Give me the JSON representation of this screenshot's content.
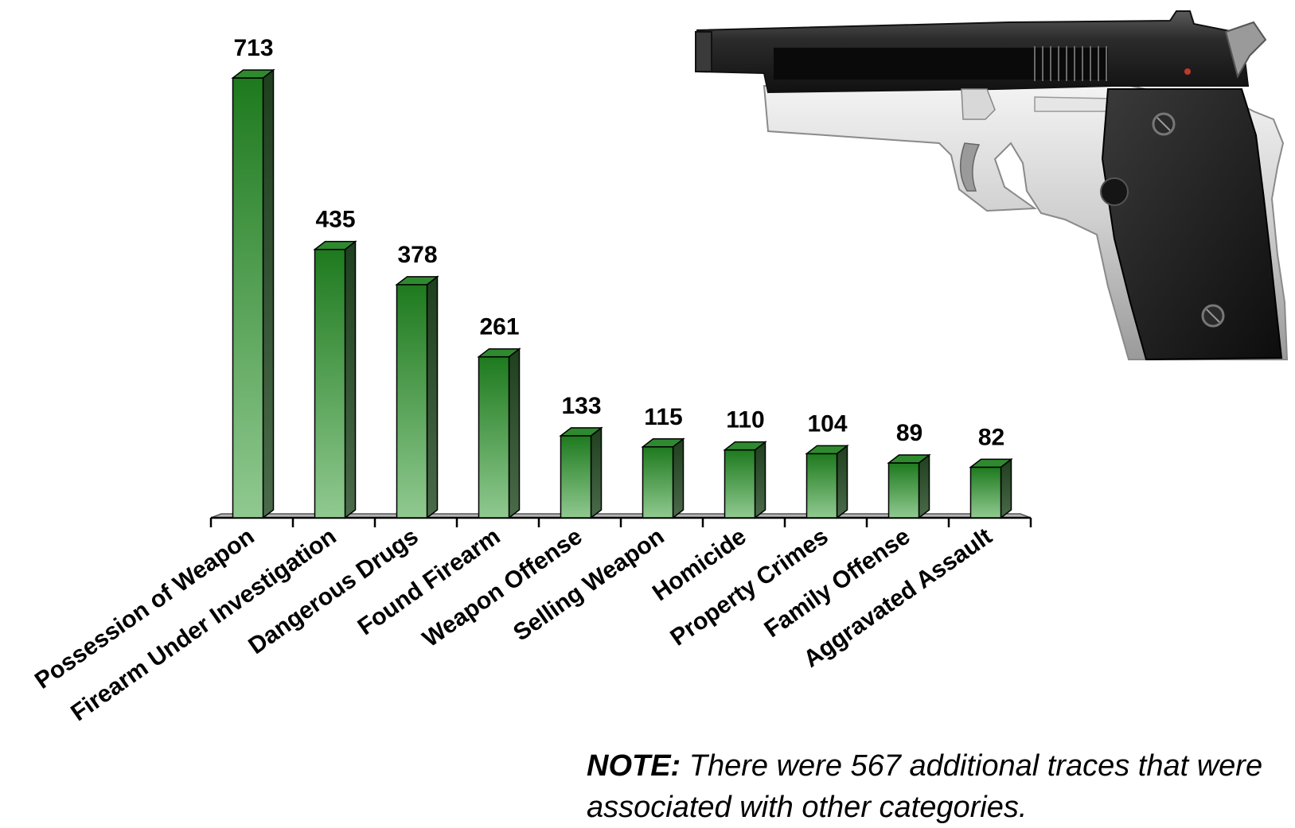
{
  "chart_data": {
    "type": "bar",
    "categories": [
      "Possession of Weapon",
      "Firearm Under Investigation",
      "Dangerous Drugs",
      "Found Firearm",
      "Weapon Offense",
      "Selling Weapon",
      "Homicide",
      "Property Crimes",
      "Family Offense",
      "Aggravated Assault"
    ],
    "values": [
      713,
      435,
      378,
      261,
      133,
      115,
      110,
      104,
      89,
      82
    ],
    "data_labels": [
      "713",
      "435",
      "378",
      "261",
      "133",
      "115",
      "110",
      "104",
      "89",
      "82"
    ],
    "ylim": [
      0,
      713
    ],
    "grid": false,
    "bar_color": "#1e7a1e",
    "bar_color_light": "#90c990"
  },
  "illustration": {
    "icon": "pistol-icon"
  },
  "note": {
    "lead": "NOTE:",
    "text": "There were 567 additional traces that were associated with other categories."
  }
}
